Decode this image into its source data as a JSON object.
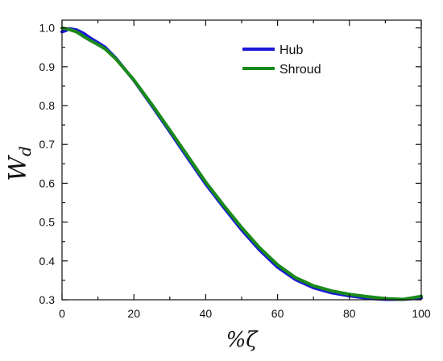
{
  "chart_data": {
    "type": "line",
    "xlabel": "%ζ",
    "ylabel": "W",
    "ylabel_subscript": "d",
    "xlim": [
      0,
      100
    ],
    "ylim": [
      0.3,
      1.02
    ],
    "xticks": [
      0,
      20,
      40,
      60,
      80,
      100
    ],
    "yticks": [
      0.3,
      0.4,
      0.5,
      0.6,
      0.7,
      0.8,
      0.9,
      1.0
    ],
    "xtick_labels": [
      "0",
      "20",
      "40",
      "60",
      "80",
      "100"
    ],
    "ytick_labels": [
      "0.3",
      "0.4",
      "0.5",
      "0.6",
      "0.7",
      "0.8",
      "0.9",
      "1.0"
    ],
    "grid": false,
    "legend_position": "top-right",
    "series": [
      {
        "name": "Hub",
        "color": "#1a1ad6",
        "x": [
          0,
          1,
          2,
          4,
          6,
          8,
          10,
          12,
          15,
          20,
          25,
          30,
          35,
          40,
          45,
          50,
          55,
          60,
          65,
          70,
          75,
          80,
          85,
          90,
          95,
          100
        ],
        "y": [
          0.99,
          0.993,
          0.998,
          0.995,
          0.986,
          0.973,
          0.962,
          0.95,
          0.922,
          0.865,
          0.8,
          0.733,
          0.665,
          0.598,
          0.538,
          0.48,
          0.428,
          0.384,
          0.352,
          0.331,
          0.318,
          0.31,
          0.304,
          0.301,
          0.301,
          0.305
        ]
      },
      {
        "name": "Shroud",
        "color": "#1a8a1a",
        "x": [
          0,
          1,
          2,
          4,
          6,
          8,
          10,
          12,
          15,
          20,
          25,
          30,
          35,
          40,
          45,
          50,
          55,
          60,
          65,
          70,
          75,
          80,
          85,
          90,
          95,
          100
        ],
        "y": [
          1.0,
          0.998,
          0.996,
          0.99,
          0.978,
          0.967,
          0.957,
          0.946,
          0.92,
          0.866,
          0.803,
          0.737,
          0.67,
          0.603,
          0.543,
          0.486,
          0.434,
          0.39,
          0.357,
          0.336,
          0.323,
          0.314,
          0.308,
          0.303,
          0.301,
          0.309
        ]
      }
    ]
  }
}
